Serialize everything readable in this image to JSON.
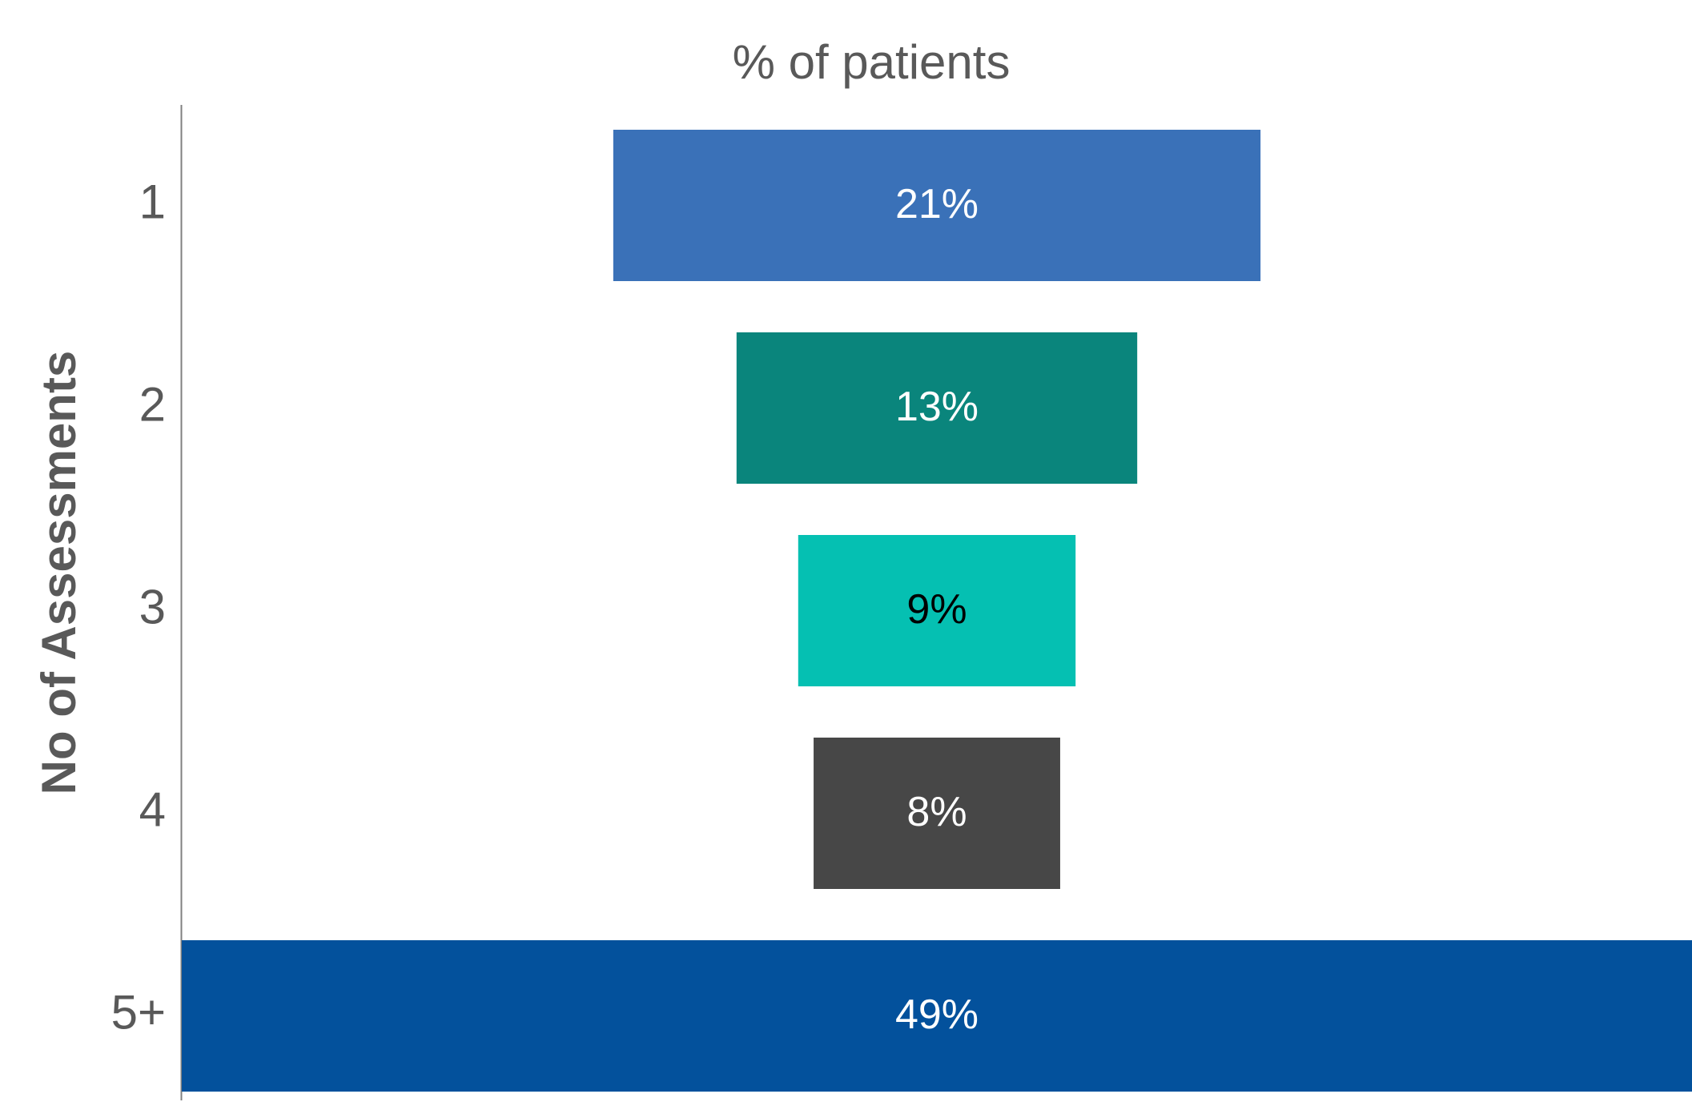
{
  "chart_data": {
    "type": "funnel",
    "title": "% of patients",
    "y_label": "No of Assessments",
    "categories": [
      "1",
      "2",
      "3",
      "4",
      "5+"
    ],
    "values": [
      21,
      13,
      9,
      8,
      49
    ],
    "value_labels": [
      "21%",
      "13%",
      "9%",
      "8%",
      "49%"
    ],
    "colors": [
      "#3a71b8",
      "#0a857c",
      "#05c0b2",
      "#474747",
      "#03519c"
    ],
    "value_label_colors": [
      "#ffffff",
      "#ffffff",
      "#000000",
      "#ffffff",
      "#ffffff"
    ]
  }
}
